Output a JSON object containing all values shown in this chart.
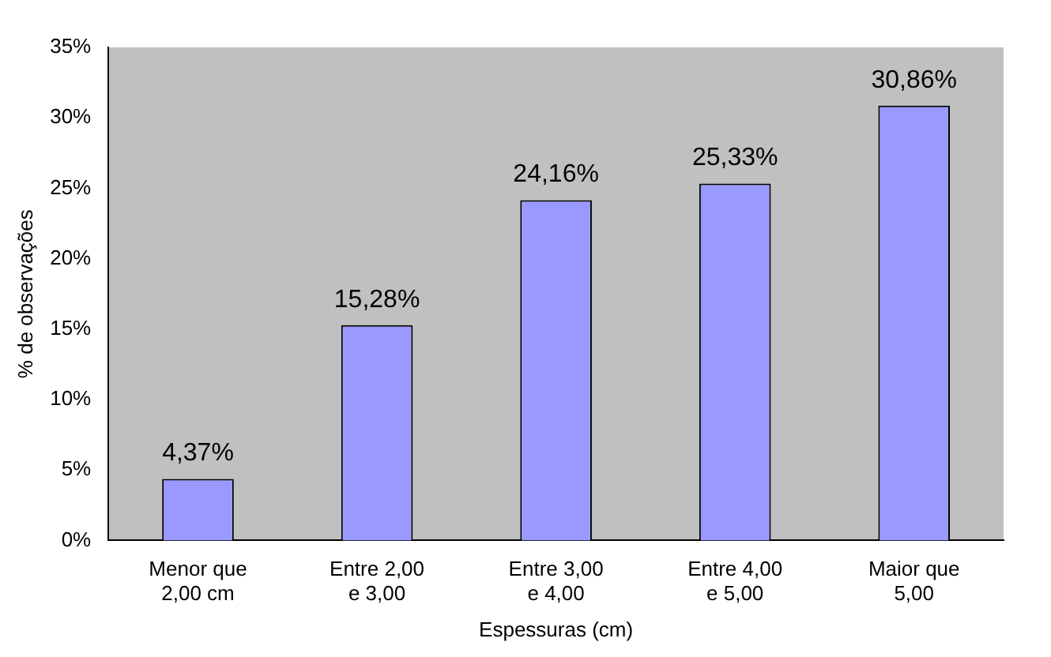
{
  "chart_data": {
    "type": "bar",
    "xlabel": "Espessuras (cm)",
    "ylabel": "% de observações",
    "categories": [
      "Menor que 2,00 cm",
      "Entre 2,00 e 3,00",
      "Entre 3,00 e 4,00",
      "Entre 4,00 e 5,00",
      "Maior que 5,00"
    ],
    "values": [
      4.37,
      15.28,
      24.16,
      25.33,
      30.86
    ],
    "value_labels": [
      "4,37%",
      "15,28%",
      "24,16%",
      "25,33%",
      "30,86%"
    ],
    "color": "#9999ff",
    "ylim": [
      0,
      35
    ],
    "yticks": [
      {
        "value": 0,
        "label": "0%"
      },
      {
        "value": 5,
        "label": "5%"
      },
      {
        "value": 10,
        "label": "10%"
      },
      {
        "value": 15,
        "label": "15%"
      },
      {
        "value": 20,
        "label": "20%"
      },
      {
        "value": 25,
        "label": "25%"
      },
      {
        "value": 30,
        "label": "30%"
      },
      {
        "value": 35,
        "label": "35%"
      }
    ],
    "grid": false,
    "legend": false
  }
}
